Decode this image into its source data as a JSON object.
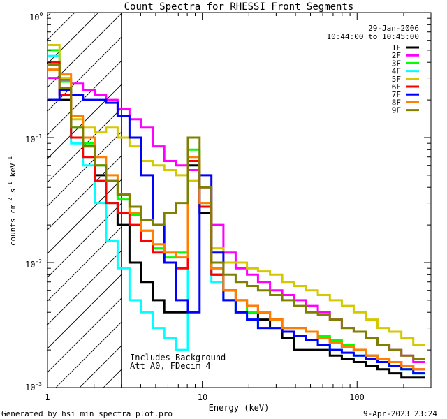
{
  "chart_data": {
    "type": "line",
    "title": "Count Spectra for RHESSI Front Segments",
    "xlabel": "Energy (keV)",
    "ylabel": "counts cm-2 s-1 keV-1",
    "xscale": "log",
    "yscale": "log",
    "xlim": [
      1,
      300
    ],
    "ylim": [
      0.001,
      1
    ],
    "x_tick_labels": [
      "1",
      "10",
      "100"
    ],
    "y_tick_labels": [
      {
        "mant": "10",
        "exp": "0",
        "value": 1
      },
      {
        "mant": "10",
        "exp": "-1",
        "value": 0.1
      },
      {
        "mant": "10",
        "exp": "-2",
        "value": 0.01
      },
      {
        "mant": "10",
        "exp": "-3",
        "value": 0.001
      }
    ],
    "ylabel_parts": {
      "base1": "counts cm",
      "sup1": "-2",
      "base2": " s",
      "sup2": "-1",
      "base3": " keV",
      "sup3": "-1"
    },
    "date": "29-Jan-2006",
    "time_range": "10:44:00 to 10:45:00",
    "shaded_region_max_energy": 3,
    "annotations": [
      "Includes Background",
      "Att A0, FDecim 4"
    ],
    "footer_left": "Generated by hsi_min_spectra_plot.pro",
    "footer_right": "9-Apr-2023 23:24",
    "energy_bins": [
      1.1,
      1.3,
      1.55,
      1.85,
      2.2,
      2.6,
      3.1,
      3.7,
      4.4,
      5.2,
      6.2,
      7.4,
      8.8,
      10.5,
      12.5,
      15,
      18,
      21,
      25,
      30,
      36,
      43,
      51,
      61,
      73,
      87,
      104,
      124,
      148,
      177,
      211,
      252
    ],
    "series": [
      {
        "name": "1F",
        "color": "#000000",
        "values": [
          0.2,
          0.2,
          0.1,
          0.085,
          0.05,
          0.03,
          0.02,
          0.01,
          0.007,
          0.005,
          0.004,
          0.004,
          0.06,
          0.025,
          0.008,
          0.005,
          0.004,
          0.004,
          0.0035,
          0.003,
          0.0025,
          0.002,
          0.002,
          0.002,
          0.0018,
          0.0017,
          0.0016,
          0.0015,
          0.0014,
          0.0013,
          0.0012,
          0.0012
        ]
      },
      {
        "name": "2F",
        "color": "#ff00ff",
        "values": [
          0.3,
          0.29,
          0.27,
          0.24,
          0.22,
          0.2,
          0.17,
          0.14,
          0.12,
          0.085,
          0.065,
          0.06,
          0.055,
          0.04,
          0.02,
          0.012,
          0.009,
          0.008,
          0.007,
          0.006,
          0.0055,
          0.005,
          0.0045,
          0.004,
          0.0035,
          0.003,
          0.0028,
          0.0025,
          0.0022,
          0.002,
          0.0018,
          0.0016
        ]
      },
      {
        "name": "3F",
        "color": "#00ff00",
        "values": [
          0.5,
          0.28,
          0.12,
          0.09,
          0.06,
          0.045,
          0.032,
          0.024,
          0.018,
          0.013,
          0.011,
          0.012,
          0.08,
          0.03,
          0.009,
          0.006,
          0.005,
          0.004,
          0.004,
          0.0035,
          0.003,
          0.003,
          0.0028,
          0.0026,
          0.0024,
          0.0022,
          0.002,
          0.0018,
          0.0016,
          0.0015,
          0.0014,
          0.0013
        ]
      },
      {
        "name": "4F",
        "color": "#00ffff",
        "values": [
          0.45,
          0.25,
          0.09,
          0.06,
          0.03,
          0.015,
          0.009,
          0.005,
          0.004,
          0.003,
          0.0025,
          0.002,
          0.07,
          0.03,
          0.007,
          0.005,
          0.004,
          0.0035,
          0.003,
          0.003,
          0.0028,
          0.0026,
          0.0024,
          0.0022,
          0.002,
          0.0019,
          0.0018,
          0.0017,
          0.0016,
          0.0015,
          0.0014,
          0.0013
        ]
      },
      {
        "name": "5F",
        "color": "#d4c800",
        "values": [
          0.55,
          0.3,
          0.14,
          0.12,
          0.11,
          0.12,
          0.1,
          0.085,
          0.065,
          0.06,
          0.055,
          0.05,
          0.045,
          0.03,
          0.013,
          0.01,
          0.01,
          0.009,
          0.0085,
          0.008,
          0.007,
          0.0065,
          0.006,
          0.0055,
          0.005,
          0.0045,
          0.004,
          0.0035,
          0.003,
          0.0028,
          0.0025,
          0.0022
        ]
      },
      {
        "name": "6F",
        "color": "#ff0000",
        "values": [
          0.4,
          0.22,
          0.1,
          0.07,
          0.045,
          0.03,
          0.025,
          0.02,
          0.015,
          0.012,
          0.01,
          0.009,
          0.065,
          0.028,
          0.008,
          0.006,
          0.005,
          0.0045,
          0.004,
          0.0035,
          0.003,
          0.003,
          0.0028,
          0.0025,
          0.0023,
          0.0021,
          0.002,
          0.0018,
          0.0017,
          0.0016,
          0.0015,
          0.0014
        ]
      },
      {
        "name": "7F",
        "color": "#0000ff",
        "values": [
          0.2,
          0.24,
          0.22,
          0.2,
          0.2,
          0.19,
          0.15,
          0.1,
          0.05,
          0.02,
          0.01,
          0.005,
          0.004,
          0.05,
          0.012,
          0.005,
          0.004,
          0.0035,
          0.003,
          0.003,
          0.0028,
          0.0026,
          0.0024,
          0.0022,
          0.002,
          0.0019,
          0.0018,
          0.0017,
          0.0016,
          0.0015,
          0.0014,
          0.0013
        ]
      },
      {
        "name": "8F",
        "color": "#ff8000",
        "values": [
          0.35,
          0.32,
          0.15,
          0.1,
          0.07,
          0.05,
          0.035,
          0.025,
          0.018,
          0.014,
          0.012,
          0.011,
          0.07,
          0.03,
          0.009,
          0.006,
          0.005,
          0.0045,
          0.004,
          0.0035,
          0.003,
          0.003,
          0.0028,
          0.0025,
          0.0023,
          0.0021,
          0.002,
          0.0018,
          0.0017,
          0.0016,
          0.0015,
          0.0014
        ]
      },
      {
        "name": "9F",
        "color": "#808000",
        "values": [
          0.38,
          0.25,
          0.12,
          0.085,
          0.06,
          0.045,
          0.035,
          0.028,
          0.022,
          0.02,
          0.025,
          0.03,
          0.1,
          0.04,
          0.01,
          0.008,
          0.007,
          0.0065,
          0.006,
          0.0055,
          0.005,
          0.0045,
          0.004,
          0.0038,
          0.0035,
          0.003,
          0.0028,
          0.0025,
          0.0022,
          0.002,
          0.0018,
          0.0017
        ]
      }
    ]
  }
}
